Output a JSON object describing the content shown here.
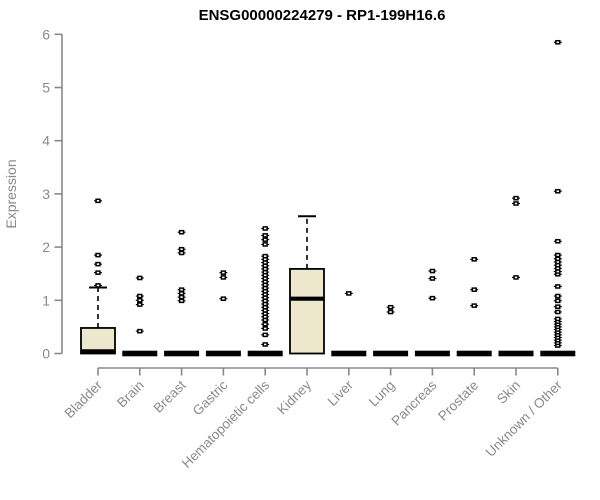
{
  "chart_data": {
    "type": "boxplot",
    "title": "ENSG00000224279 - RP1-199H16.6",
    "ylabel": "Expression",
    "xlabel": "",
    "ylim": [
      0,
      6
    ],
    "yticks": [
      0,
      1,
      2,
      3,
      4,
      5,
      6
    ],
    "grid": false,
    "legend": "none",
    "colors": {
      "box_fill": "#ede7ce",
      "box_stroke": "#000000",
      "axis_line": "#888888",
      "axis_text": "#8a8a8a",
      "point": "#000000"
    },
    "categories": [
      "Bladder",
      "Brain",
      "Breast",
      "Gastric",
      "Hematopoietic cells",
      "Kidney",
      "Liver",
      "Lung",
      "Pancreas",
      "Prostate",
      "Skin",
      "Unknown / Other"
    ],
    "series": [
      {
        "category": "Bladder",
        "q1": 0,
        "median": 0.04,
        "q3": 0.48,
        "whisker_low": 0,
        "whisker_high": 1.24,
        "outliers": [
          1.28,
          1.52,
          1.68,
          1.85,
          2.87
        ]
      },
      {
        "category": "Brain",
        "q1": 0,
        "median": 0,
        "q3": 0,
        "whisker_low": 0,
        "whisker_high": 0,
        "outliers": [
          0.42,
          0.92,
          1.0,
          1.08,
          1.42
        ]
      },
      {
        "category": "Breast",
        "q1": 0,
        "median": 0,
        "q3": 0,
        "whisker_low": 0,
        "whisker_high": 0,
        "outliers": [
          0.99,
          1.06,
          1.13,
          1.2,
          1.89,
          1.96,
          2.28
        ]
      },
      {
        "category": "Gastric",
        "q1": 0,
        "median": 0,
        "q3": 0,
        "whisker_low": 0,
        "whisker_high": 0,
        "outliers": [
          1.03,
          1.43,
          1.52
        ]
      },
      {
        "category": "Hematopoietic cells",
        "q1": 0,
        "median": 0,
        "q3": 0,
        "whisker_low": 0,
        "whisker_high": 0,
        "outliers": [
          0.17,
          0.35,
          0.47,
          0.55,
          0.63,
          0.69,
          0.75,
          0.81,
          0.87,
          0.93,
          0.99,
          1.05,
          1.11,
          1.17,
          1.23,
          1.29,
          1.35,
          1.41,
          1.47,
          1.53,
          1.59,
          1.65,
          1.71,
          1.77,
          1.83,
          2.05,
          2.14,
          2.22,
          2.35
        ]
      },
      {
        "category": "Kidney",
        "q1": 0,
        "median": 1.03,
        "q3": 1.59,
        "whisker_low": 0,
        "whisker_high": 2.58,
        "outliers": []
      },
      {
        "category": "Liver",
        "q1": 0,
        "median": 0,
        "q3": 0,
        "whisker_low": 0,
        "whisker_high": 0,
        "outliers": [
          1.13
        ]
      },
      {
        "category": "Lung",
        "q1": 0,
        "median": 0,
        "q3": 0,
        "whisker_low": 0,
        "whisker_high": 0,
        "outliers": [
          0.78,
          0.87
        ]
      },
      {
        "category": "Pancreas",
        "q1": 0,
        "median": 0,
        "q3": 0,
        "whisker_low": 0,
        "whisker_high": 0,
        "outliers": [
          1.04,
          1.41,
          1.55
        ]
      },
      {
        "category": "Prostate",
        "q1": 0,
        "median": 0,
        "q3": 0,
        "whisker_low": 0,
        "whisker_high": 0,
        "outliers": [
          0.9,
          1.2,
          1.77
        ]
      },
      {
        "category": "Skin",
        "q1": 0,
        "median": 0,
        "q3": 0,
        "whisker_low": 0,
        "whisker_high": 0,
        "outliers": [
          1.43,
          2.82,
          2.92
        ]
      },
      {
        "category": "Unknown / Other",
        "q1": 0,
        "median": 0,
        "q3": 0,
        "whisker_low": 0,
        "whisker_high": 0,
        "outliers": [
          0.15,
          0.2,
          0.25,
          0.3,
          0.35,
          0.4,
          0.45,
          0.5,
          0.55,
          0.6,
          0.65,
          0.78,
          0.88,
          0.99,
          1.08,
          1.26,
          1.49,
          1.54,
          1.6,
          1.66,
          1.72,
          1.78,
          1.85,
          2.11,
          3.05,
          5.85
        ]
      }
    ]
  }
}
